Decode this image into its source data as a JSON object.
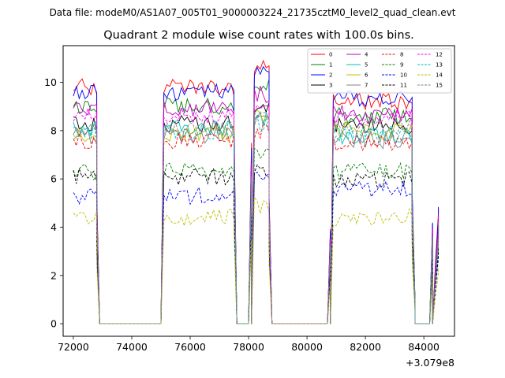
{
  "chart_data": {
    "type": "line",
    "suptitle": "Data file: modeM0/AS1A07_005T01_9000003224_21735cztM0_level2_quad_clean.evt",
    "title": "Quadrant 2 module wise count rates with 100.0s bins.",
    "xlabel": "",
    "ylabel": "",
    "x_offset_label": "+3.079e8",
    "xlim": [
      71650,
      85050
    ],
    "ylim": [
      -0.52,
      11.52
    ],
    "x_ticks": [
      72000,
      74000,
      76000,
      78000,
      80000,
      82000,
      84000
    ],
    "x_tick_labels": [
      "72000",
      "74000",
      "76000",
      "78000",
      "80000",
      "82000",
      "84000"
    ],
    "y_ticks": [
      0,
      2,
      4,
      6,
      8,
      10
    ],
    "y_tick_labels": [
      "0",
      "2",
      "4",
      "6",
      "8",
      "10"
    ],
    "legend_position": "top-right",
    "segments": [
      {
        "start": 72000,
        "end": 72800
      },
      {
        "start": 75100,
        "end": 77500
      },
      {
        "start": 78200,
        "end": 78700
      },
      {
        "start": 80900,
        "end": 83600
      },
      {
        "start": 84400,
        "end": 84500
      }
    ],
    "gaps": [
      {
        "start": 72900,
        "end": 75000
      },
      {
        "start": 77600,
        "end": 78100
      },
      {
        "start": 78800,
        "end": 80800
      },
      {
        "start": 83700,
        "end": 84300
      }
    ],
    "edge_points": [
      {
        "x": 72800,
        "frac": 0.55
      },
      {
        "x": 77500,
        "frac": 0.85
      },
      {
        "x": 78100,
        "frac": 0.7
      },
      {
        "x": 78700,
        "frac": 0.5
      },
      {
        "x": 80800,
        "frac": 0.4
      },
      {
        "x": 83600,
        "frac": 0.6
      },
      {
        "x": 83700,
        "frac": 0.1
      },
      {
        "x": 84300,
        "frac": 0.45
      },
      {
        "x": 84500,
        "frac": 0.52
      }
    ],
    "series": [
      {
        "name": "0",
        "color": "#ff0000",
        "dash": "solid",
        "base": 9.8,
        "s1": 9.8,
        "s2": 10.7,
        "s4": 9.2,
        "last": 4.6
      },
      {
        "name": "1",
        "color": "#008000",
        "dash": "solid",
        "base": 9.2,
        "s1": 9.0,
        "s2": 9.9,
        "s4": 8.6,
        "last": 4.2
      },
      {
        "name": "2",
        "color": "#0000ff",
        "dash": "solid",
        "base": 9.6,
        "s1": 9.6,
        "s2": 10.4,
        "s4": 9.3,
        "last": 4.4
      },
      {
        "name": "3",
        "color": "#000000",
        "dash": "solid",
        "base": 8.3,
        "s1": 8.3,
        "s2": 9.0,
        "s4": 8.2,
        "last": 3.9
      },
      {
        "name": "4",
        "color": "#bf00bf",
        "dash": "solid",
        "base": 8.9,
        "s1": 8.9,
        "s2": 9.5,
        "s4": 8.7,
        "last": 4.0
      },
      {
        "name": "5",
        "color": "#00bfbf",
        "dash": "solid",
        "base": 8.2,
        "s1": 8.1,
        "s2": 8.5,
        "s4": 7.8,
        "last": 3.5
      },
      {
        "name": "6",
        "color": "#bfbf00",
        "dash": "solid",
        "base": 8.4,
        "s1": 7.9,
        "s2": 8.7,
        "s4": 8.0,
        "last": 3.7
      },
      {
        "name": "7",
        "color": "#808080",
        "dash": "solid",
        "base": 8.0,
        "s1": 7.8,
        "s2": 8.3,
        "s4": 7.6,
        "last": 3.4
      },
      {
        "name": "8",
        "color": "#ff0000",
        "dash": "dashed",
        "base": 7.3,
        "s1": 7.6,
        "s2": 8.0,
        "s4": 7.5,
        "last": 3.6
      },
      {
        "name": "9",
        "color": "#008000",
        "dash": "dashed",
        "base": 6.4,
        "s1": 6.3,
        "s2": 7.0,
        "s4": 6.3,
        "last": 3.0
      },
      {
        "name": "10",
        "color": "#0000ff",
        "dash": "dashed",
        "base": 5.3,
        "s1": 5.3,
        "s2": 6.3,
        "s4": 5.6,
        "last": 2.7
      },
      {
        "name": "11",
        "color": "#000000",
        "dash": "dashed",
        "base": 6.2,
        "s1": 6.1,
        "s2": 6.4,
        "s4": 6.0,
        "last": 2.9
      },
      {
        "name": "12",
        "color": "#ff00ff",
        "dash": "dashed",
        "base": 8.2,
        "s1": 8.6,
        "s2": 8.8,
        "s4": 8.5,
        "last": 3.8
      },
      {
        "name": "13",
        "color": "#00bfbf",
        "dash": "dashed",
        "base": 7.6,
        "s1": 7.9,
        "s2": 8.3,
        "s4": 7.9,
        "last": 3.3
      },
      {
        "name": "14",
        "color": "#bfbf00",
        "dash": "dashed",
        "base": 4.8,
        "s1": 4.4,
        "s2": 4.9,
        "s4": 4.4,
        "last": 2.1
      },
      {
        "name": "15",
        "color": "#808080",
        "dash": "dashed",
        "base": 8.1,
        "s1": 8.1,
        "s2": 8.6,
        "s4": 8.2,
        "last": 3.5
      }
    ]
  }
}
